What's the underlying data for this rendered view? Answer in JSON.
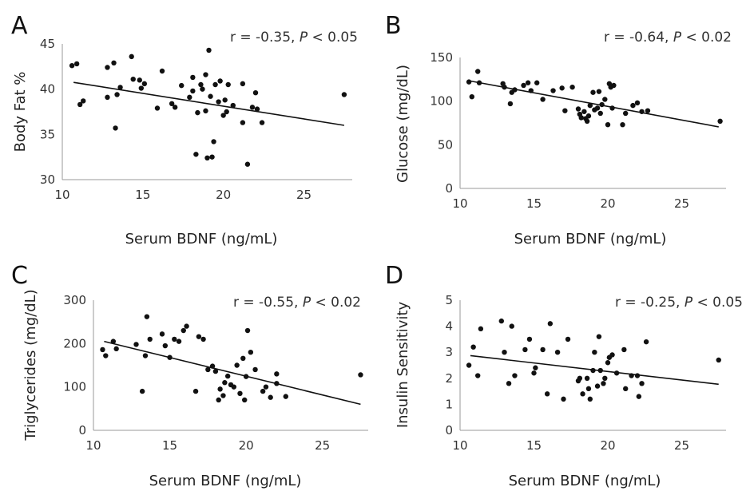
{
  "chart_data": [
    {
      "type": "scatter",
      "panel_label": "A",
      "annotation": {
        "r": "r = -0.35, ",
        "p_symbol": "P",
        "p_rest": " < 0.05"
      },
      "xlabel": "Serum BDNF (ng/mL)",
      "ylabel": "Body Fat %",
      "xlim": [
        10,
        28
      ],
      "ylim": [
        30,
        45
      ],
      "xticks": [
        10,
        15,
        20,
        25
      ],
      "yticks": [
        30,
        35,
        40,
        45
      ],
      "trendline": [
        [
          10.7,
          40.75
        ],
        [
          27.5,
          36.0
        ]
      ],
      "points": [
        [
          10.6,
          42.6
        ],
        [
          10.9,
          42.8
        ],
        [
          11.1,
          38.3
        ],
        [
          11.3,
          38.7
        ],
        [
          12.8,
          42.4
        ],
        [
          12.8,
          39.1
        ],
        [
          13.2,
          42.9
        ],
        [
          13.3,
          35.7
        ],
        [
          13.4,
          39.4
        ],
        [
          13.6,
          40.2
        ],
        [
          14.3,
          43.6
        ],
        [
          14.4,
          41.1
        ],
        [
          14.8,
          41.0
        ],
        [
          14.9,
          40.1
        ],
        [
          15.1,
          40.6
        ],
        [
          15.9,
          37.9
        ],
        [
          16.2,
          42.0
        ],
        [
          17.0,
          38.0
        ],
        [
          17.4,
          40.4
        ],
        [
          17.9,
          39.1
        ],
        [
          18.1,
          39.8
        ],
        [
          18.1,
          41.3
        ],
        [
          18.3,
          32.8
        ],
        [
          18.4,
          37.4
        ],
        [
          18.6,
          40.5
        ],
        [
          18.7,
          40.0
        ],
        [
          18.9,
          37.6
        ],
        [
          18.9,
          41.6
        ],
        [
          19.0,
          32.4
        ],
        [
          19.1,
          44.3
        ],
        [
          19.2,
          39.2
        ],
        [
          19.3,
          32.5
        ],
        [
          19.4,
          34.2
        ],
        [
          19.5,
          40.5
        ],
        [
          19.8,
          40.9
        ],
        [
          20.0,
          37.1
        ],
        [
          20.1,
          38.8
        ],
        [
          20.3,
          40.5
        ],
        [
          20.6,
          38.2
        ],
        [
          21.2,
          40.6
        ],
        [
          21.2,
          36.3
        ],
        [
          21.5,
          31.7
        ],
        [
          21.8,
          38.0
        ],
        [
          22.0,
          39.6
        ],
        [
          22.4,
          36.3
        ],
        [
          22.1,
          37.8
        ],
        [
          27.5,
          39.4
        ],
        [
          20.2,
          37.5
        ],
        [
          19.7,
          38.6
        ],
        [
          16.8,
          38.4
        ]
      ]
    },
    {
      "type": "scatter",
      "panel_label": "B",
      "annotation": {
        "r": "r = -0.64, ",
        "p_symbol": "P",
        "p_rest": " < 0.02"
      },
      "xlabel": "Serum BDNF (ng/mL)",
      "ylabel": "Glucose (mg/dL)",
      "xlim": [
        10,
        28
      ],
      "ylim": [
        0,
        150
      ],
      "xticks": [
        10,
        15,
        20,
        25
      ],
      "yticks": [
        0,
        50,
        100,
        150
      ],
      "trendline": [
        [
          10.7,
          123.0
        ],
        [
          27.5,
          70.5
        ]
      ],
      "points": [
        [
          10.6,
          122
        ],
        [
          10.8,
          105
        ],
        [
          11.2,
          134
        ],
        [
          11.3,
          121
        ],
        [
          12.9,
          120
        ],
        [
          13.0,
          116
        ],
        [
          13.4,
          97
        ],
        [
          13.5,
          110
        ],
        [
          13.7,
          113
        ],
        [
          14.3,
          118
        ],
        [
          14.6,
          121
        ],
        [
          14.8,
          112
        ],
        [
          15.2,
          121
        ],
        [
          15.6,
          102
        ],
        [
          16.3,
          112
        ],
        [
          16.9,
          115
        ],
        [
          17.1,
          89
        ],
        [
          17.6,
          116
        ],
        [
          18.0,
          91
        ],
        [
          18.1,
          85
        ],
        [
          18.2,
          81
        ],
        [
          18.4,
          88
        ],
        [
          18.6,
          77
        ],
        [
          18.7,
          83
        ],
        [
          18.8,
          95
        ],
        [
          19.0,
          110
        ],
        [
          19.1,
          90
        ],
        [
          19.3,
          92
        ],
        [
          19.4,
          111
        ],
        [
          19.5,
          86
        ],
        [
          19.6,
          96
        ],
        [
          19.8,
          102
        ],
        [
          20.1,
          120
        ],
        [
          20.2,
          116
        ],
        [
          20.3,
          92
        ],
        [
          20.0,
          73
        ],
        [
          21.0,
          73
        ],
        [
          21.2,
          86
        ],
        [
          21.7,
          95
        ],
        [
          22.0,
          98
        ],
        [
          22.3,
          88
        ],
        [
          22.7,
          89
        ],
        [
          27.6,
          77
        ],
        [
          20.4,
          118
        ],
        [
          18.5,
          80
        ]
      ]
    },
    {
      "type": "scatter",
      "panel_label": "C",
      "annotation": {
        "r": "r = -0.55, ",
        "p_symbol": "P",
        "p_rest": " < 0.02"
      },
      "xlabel": "Serum BDNF (ng/mL)",
      "ylabel": "Triglycerides (mg/dL)",
      "xlim": [
        10,
        28
      ],
      "ylim": [
        0,
        300
      ],
      "xticks": [
        10,
        15,
        20,
        25
      ],
      "yticks": [
        0,
        100,
        200,
        300
      ],
      "trendline": [
        [
          10.7,
          205
        ],
        [
          27.5,
          60
        ]
      ],
      "points": [
        [
          10.6,
          186
        ],
        [
          10.8,
          172
        ],
        [
          11.3,
          205
        ],
        [
          11.5,
          188
        ],
        [
          12.8,
          198
        ],
        [
          13.2,
          90
        ],
        [
          13.4,
          172
        ],
        [
          13.5,
          262
        ],
        [
          13.7,
          210
        ],
        [
          14.5,
          222
        ],
        [
          14.7,
          195
        ],
        [
          15.0,
          168
        ],
        [
          15.3,
          210
        ],
        [
          15.6,
          205
        ],
        [
          15.9,
          230
        ],
        [
          16.1,
          240
        ],
        [
          16.7,
          90
        ],
        [
          16.9,
          216
        ],
        [
          17.2,
          210
        ],
        [
          17.8,
          148
        ],
        [
          18.0,
          136
        ],
        [
          18.2,
          70
        ],
        [
          18.3,
          95
        ],
        [
          18.5,
          80
        ],
        [
          18.6,
          110
        ],
        [
          18.8,
          125
        ],
        [
          19.0,
          105
        ],
        [
          19.2,
          100
        ],
        [
          19.4,
          150
        ],
        [
          19.6,
          85
        ],
        [
          19.8,
          166
        ],
        [
          20.1,
          230
        ],
        [
          20.0,
          124
        ],
        [
          20.3,
          180
        ],
        [
          20.6,
          140
        ],
        [
          21.1,
          90
        ],
        [
          21.3,
          100
        ],
        [
          21.6,
          76
        ],
        [
          22.0,
          130
        ],
        [
          22.0,
          108
        ],
        [
          22.6,
          78
        ],
        [
          27.5,
          128
        ],
        [
          19.9,
          70
        ],
        [
          17.5,
          140
        ]
      ]
    },
    {
      "type": "scatter",
      "panel_label": "D",
      "annotation": {
        "r": "r = -0.25, ",
        "p_symbol": "P",
        "p_rest": " < 0.05"
      },
      "xlabel": "Serum BDNF (ng/mL)",
      "ylabel": "Insulin Sensitivity",
      "xlim": [
        10,
        28
      ],
      "ylim": [
        0,
        5
      ],
      "xticks": [
        10,
        15,
        20,
        25
      ],
      "yticks": [
        0,
        1,
        2,
        3,
        4,
        5
      ],
      "trendline": [
        [
          10.7,
          2.87
        ],
        [
          27.5,
          1.77
        ]
      ],
      "points": [
        [
          10.6,
          2.5
        ],
        [
          10.9,
          3.2
        ],
        [
          11.2,
          2.1
        ],
        [
          11.4,
          3.9
        ],
        [
          12.8,
          4.2
        ],
        [
          13.0,
          3.0
        ],
        [
          13.3,
          1.8
        ],
        [
          13.5,
          4.0
        ],
        [
          13.7,
          2.1
        ],
        [
          14.4,
          3.1
        ],
        [
          14.7,
          3.5
        ],
        [
          15.0,
          2.2
        ],
        [
          15.1,
          2.4
        ],
        [
          15.6,
          3.1
        ],
        [
          15.9,
          1.4
        ],
        [
          16.1,
          4.1
        ],
        [
          16.6,
          3.0
        ],
        [
          17.0,
          1.2
        ],
        [
          17.3,
          3.5
        ],
        [
          18.1,
          2.0
        ],
        [
          18.3,
          1.4
        ],
        [
          18.6,
          2.0
        ],
        [
          18.7,
          1.6
        ],
        [
          18.8,
          1.2
        ],
        [
          19.0,
          2.3
        ],
        [
          19.1,
          3.0
        ],
        [
          19.3,
          1.7
        ],
        [
          19.4,
          3.6
        ],
        [
          19.5,
          2.3
        ],
        [
          19.8,
          2.0
        ],
        [
          20.0,
          2.6
        ],
        [
          20.1,
          2.8
        ],
        [
          20.3,
          2.9
        ],
        [
          20.6,
          2.2
        ],
        [
          21.1,
          3.1
        ],
        [
          21.2,
          1.6
        ],
        [
          21.6,
          2.1
        ],
        [
          22.0,
          2.1
        ],
        [
          22.1,
          1.3
        ],
        [
          22.3,
          1.8
        ],
        [
          22.6,
          3.4
        ],
        [
          27.5,
          2.7
        ],
        [
          18.0,
          1.9
        ],
        [
          19.7,
          1.8
        ]
      ]
    }
  ]
}
